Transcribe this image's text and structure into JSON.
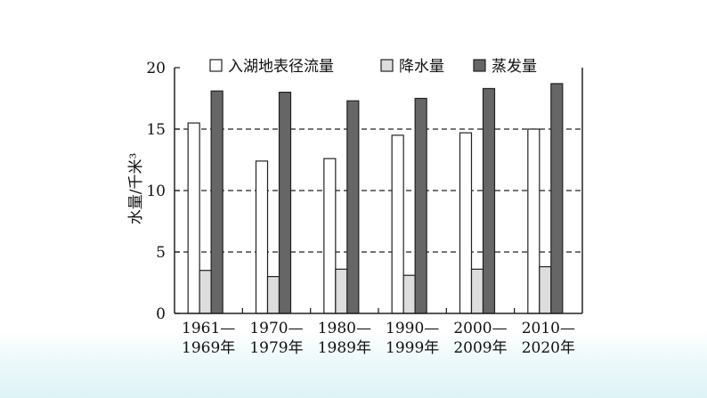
{
  "chart_data": {
    "type": "bar",
    "title": "",
    "xlabel": "",
    "ylabel": "水量/千米³",
    "ylim": [
      0,
      20
    ],
    "yticks": [
      0,
      5,
      10,
      15,
      20
    ],
    "grid": "dashed horizontal lines at 5, 10, 15",
    "legend_position": "top",
    "categories": [
      {
        "line1": "1961—",
        "line2": "1969年"
      },
      {
        "line1": "1970—",
        "line2": "1979年"
      },
      {
        "line1": "1980—",
        "line2": "1989年"
      },
      {
        "line1": "1990—",
        "line2": "1999年"
      },
      {
        "line1": "2000—",
        "line2": "2009年"
      },
      {
        "line1": "2010—",
        "line2": "2020年"
      }
    ],
    "series": [
      {
        "name": "入湖地表径流量",
        "color": "#ffffff",
        "values": [
          15.5,
          12.4,
          12.6,
          14.5,
          14.7,
          15.0
        ]
      },
      {
        "name": "降水量",
        "color": "#dddddd",
        "values": [
          3.5,
          3.0,
          3.6,
          3.1,
          3.6,
          3.8
        ]
      },
      {
        "name": "蒸发量",
        "color": "#666666",
        "values": [
          18.1,
          18.0,
          17.3,
          17.5,
          18.3,
          18.7
        ]
      }
    ]
  }
}
